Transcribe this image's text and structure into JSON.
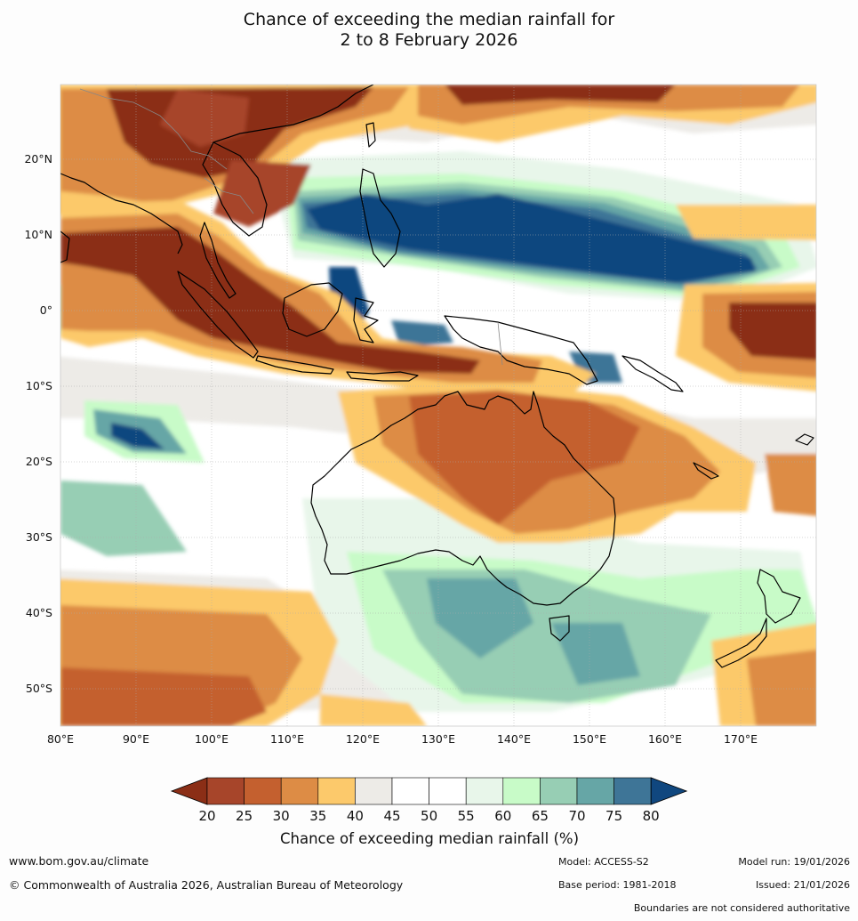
{
  "title_line1": "Chance of exceeding the median rainfall for",
  "title_line2": "2 to 8 February 2026",
  "map": {
    "lon_range": [
      80,
      180
    ],
    "lat_range": [
      -55,
      30
    ],
    "lon_labels": [
      "80°E",
      "90°E",
      "100°E",
      "110°E",
      "120°E",
      "130°E",
      "140°E",
      "150°E",
      "160°E",
      "170°E"
    ],
    "lat_labels": [
      "20°N",
      "10°N",
      "0°",
      "10°S",
      "20°S",
      "30°S",
      "40°S",
      "50°S"
    ],
    "colors": {
      "lt20": "#8b2e16",
      "20-25": "#a7452a",
      "25-30": "#c4602f",
      "30-35": "#dd8c45",
      "35-40": "#fcc96b",
      "40-45": "#edebe7",
      "45-55": "#ffffff",
      "55-60": "#e8f6ea",
      "60-65": "#c8fbc8",
      "65-70": "#97ceb4",
      "70-75": "#66a6a6",
      "75-80": "#3e7597",
      "gt80": "#10477f"
    }
  },
  "colorbar": {
    "ticks": [
      "20",
      "25",
      "30",
      "35",
      "40",
      "45",
      "50",
      "55",
      "60",
      "65",
      "70",
      "75",
      "80"
    ],
    "title": "Chance of exceeding median rainfall (%)"
  },
  "footer": {
    "website": "www.bom.gov.au/climate",
    "copyright": "© Commonwealth of Australia 2026, Australian Bureau of Meteorology",
    "model": "Model: ACCESS-S2",
    "base_period": "Base period: 1981-2018",
    "model_run": "Model run: 19/01/2026",
    "issued": "Issued: 21/01/2026",
    "disclaimer": "Boundaries are not considered authoritative"
  }
}
